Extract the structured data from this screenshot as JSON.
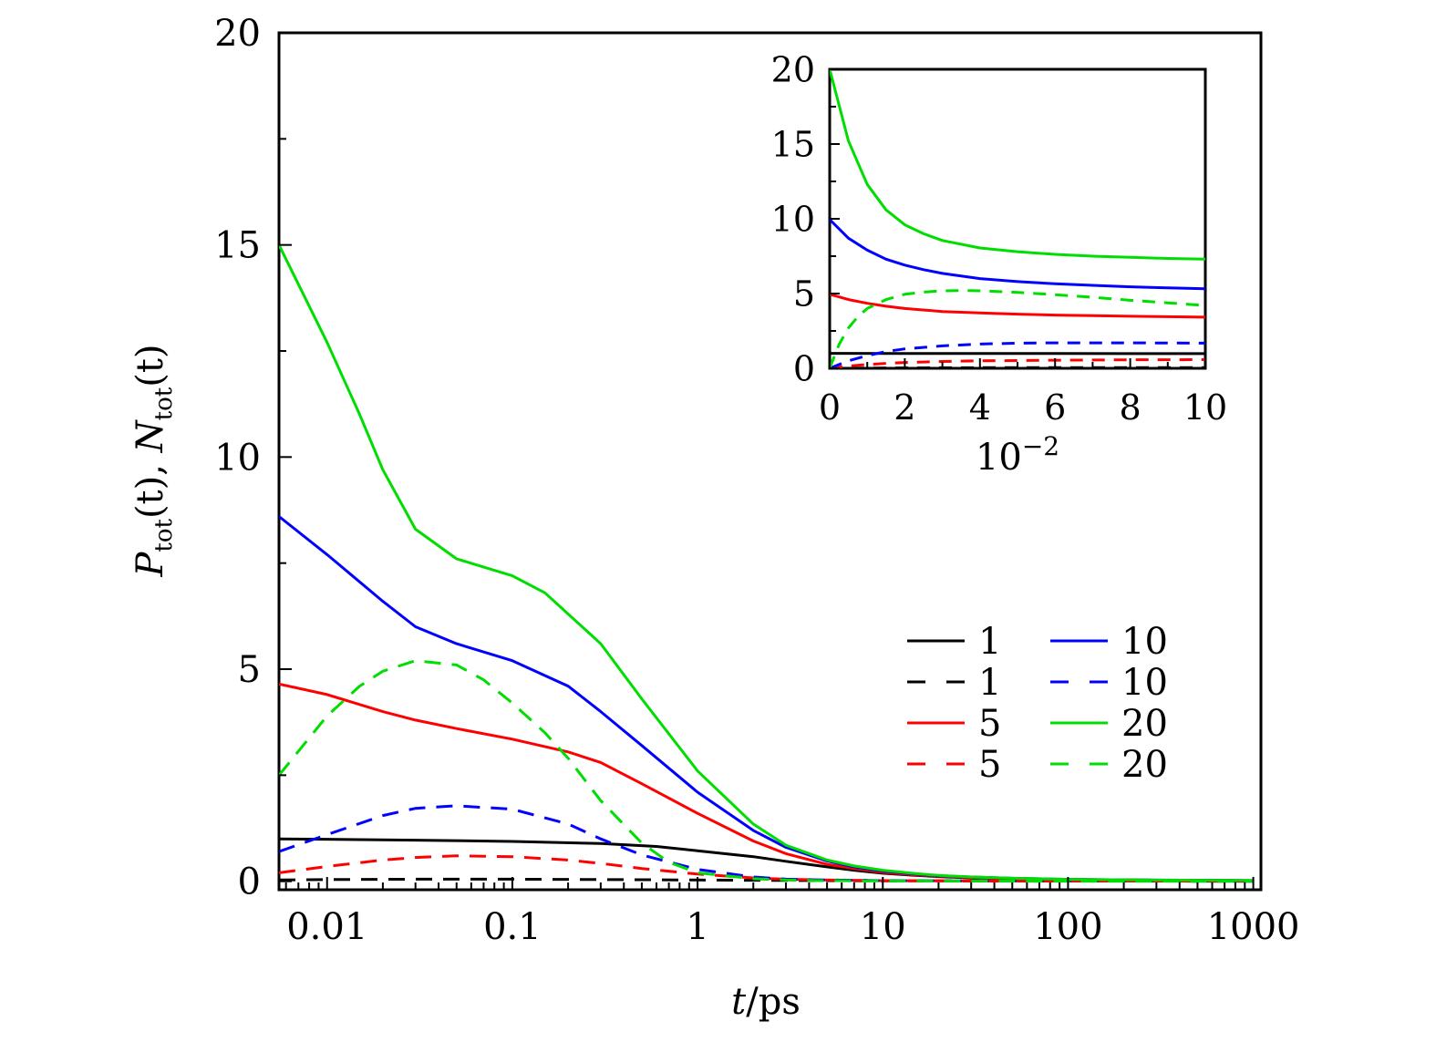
{
  "chart_data": [
    {
      "type": "line",
      "xscale": "log",
      "xlabel_var": "t",
      "xlabel_unit": "/ps",
      "ylabel_p": "P",
      "ylabel_n": "N",
      "ylabel_sub": "tot",
      "ylabel_arg": "(t)",
      "xlim": [
        0.0055,
        1100
      ],
      "ylim": [
        -0.2,
        20
      ],
      "xticks": [
        0.01,
        0.1,
        1,
        10,
        100,
        1000
      ],
      "xtick_labels": [
        "0.01",
        "0.1",
        "1",
        "10",
        "100",
        "1000"
      ],
      "yticks": [
        0,
        5,
        10,
        15,
        20
      ],
      "ytick_labels": [
        "0",
        "5",
        "10",
        "15",
        "20"
      ],
      "legend_position": "center-right",
      "series": [
        {
          "name": "1",
          "kind": "P",
          "color": "#000000",
          "dash": "solid",
          "x": [
            0.0055,
            0.01,
            0.03,
            0.1,
            0.3,
            0.6,
            1,
            2,
            3,
            5,
            7,
            10,
            15,
            20,
            30,
            50,
            100,
            300,
            1000
          ],
          "y": [
            1.0,
            0.99,
            0.97,
            0.94,
            0.89,
            0.82,
            0.72,
            0.58,
            0.47,
            0.34,
            0.26,
            0.19,
            0.14,
            0.11,
            0.08,
            0.06,
            0.04,
            0.025,
            0.015
          ]
        },
        {
          "name": "1",
          "kind": "N",
          "color": "#000000",
          "dash": "dashed",
          "x": [
            0.0055,
            0.01,
            0.03,
            0.1,
            0.3,
            1,
            3,
            10,
            100,
            1000
          ],
          "y": [
            0.03,
            0.04,
            0.05,
            0.05,
            0.04,
            0.03,
            0.02,
            0.01,
            0.005,
            0.002
          ]
        },
        {
          "name": "5",
          "kind": "P",
          "color": "#ff0000",
          "dash": "solid",
          "x": [
            0.0055,
            0.01,
            0.02,
            0.03,
            0.05,
            0.1,
            0.2,
            0.3,
            0.5,
            1,
            2,
            3,
            5,
            7,
            10,
            15,
            20,
            30,
            50,
            100,
            300,
            1000
          ],
          "y": [
            4.65,
            4.4,
            4.0,
            3.8,
            3.6,
            3.35,
            3.05,
            2.8,
            2.3,
            1.6,
            0.95,
            0.65,
            0.4,
            0.3,
            0.21,
            0.15,
            0.12,
            0.09,
            0.06,
            0.04,
            0.025,
            0.015
          ]
        },
        {
          "name": "5",
          "kind": "N",
          "color": "#ff0000",
          "dash": "dashed",
          "x": [
            0.0055,
            0.01,
            0.02,
            0.03,
            0.05,
            0.1,
            0.2,
            0.3,
            0.5,
            1,
            2,
            3,
            5,
            10,
            30,
            100,
            1000
          ],
          "y": [
            0.2,
            0.35,
            0.5,
            0.56,
            0.6,
            0.58,
            0.5,
            0.42,
            0.3,
            0.17,
            0.08,
            0.05,
            0.03,
            0.015,
            0.008,
            0.004,
            0.002
          ]
        },
        {
          "name": "10",
          "kind": "P",
          "color": "#0000ff",
          "dash": "solid",
          "x": [
            0.0055,
            0.01,
            0.02,
            0.03,
            0.05,
            0.1,
            0.2,
            0.3,
            0.5,
            1,
            2,
            3,
            5,
            7,
            10,
            15,
            20,
            30,
            50,
            100,
            300,
            1000
          ],
          "y": [
            8.6,
            7.7,
            6.6,
            6.0,
            5.6,
            5.2,
            4.6,
            4.0,
            3.2,
            2.1,
            1.2,
            0.8,
            0.48,
            0.34,
            0.24,
            0.17,
            0.13,
            0.1,
            0.07,
            0.045,
            0.028,
            0.016
          ]
        },
        {
          "name": "10",
          "kind": "N",
          "color": "#0000ff",
          "dash": "dashed",
          "x": [
            0.0055,
            0.01,
            0.02,
            0.03,
            0.05,
            0.1,
            0.2,
            0.3,
            0.5,
            1,
            2,
            3,
            5,
            10,
            30,
            100,
            1000
          ],
          "y": [
            0.7,
            1.1,
            1.55,
            1.72,
            1.78,
            1.7,
            1.35,
            1.0,
            0.62,
            0.28,
            0.1,
            0.05,
            0.03,
            0.015,
            0.008,
            0.004,
            0.002
          ]
        },
        {
          "name": "20",
          "kind": "P",
          "color": "#00dd00",
          "dash": "solid",
          "x": [
            0.0055,
            0.01,
            0.015,
            0.02,
            0.03,
            0.05,
            0.1,
            0.15,
            0.2,
            0.3,
            0.5,
            1,
            2,
            3,
            5,
            7,
            10,
            15,
            20,
            30,
            50,
            100,
            300,
            1000
          ],
          "y": [
            15.0,
            12.7,
            11.0,
            9.7,
            8.3,
            7.6,
            7.2,
            6.8,
            6.3,
            5.6,
            4.3,
            2.6,
            1.35,
            0.85,
            0.5,
            0.36,
            0.26,
            0.18,
            0.14,
            0.1,
            0.07,
            0.045,
            0.028,
            0.016
          ]
        },
        {
          "name": "20",
          "kind": "N",
          "color": "#00dd00",
          "dash": "dashed",
          "x": [
            0.0055,
            0.01,
            0.015,
            0.02,
            0.03,
            0.05,
            0.07,
            0.1,
            0.15,
            0.2,
            0.3,
            0.5,
            0.7,
            1,
            2,
            3,
            5,
            10,
            30,
            100,
            1000
          ],
          "y": [
            2.5,
            3.9,
            4.6,
            4.95,
            5.2,
            5.1,
            4.75,
            4.2,
            3.5,
            2.9,
            1.9,
            0.9,
            0.45,
            0.2,
            0.06,
            0.03,
            0.015,
            0.008,
            0.004,
            0.002,
            0.001
          ]
        }
      ]
    },
    {
      "type": "line",
      "xlabel_base": "10",
      "xlabel_exp": "−2",
      "xlim": [
        0,
        10
      ],
      "ylim": [
        0,
        20
      ],
      "xticks": [
        0,
        2,
        4,
        6,
        8,
        10
      ],
      "xtick_labels": [
        "0",
        "2",
        "4",
        "6",
        "8",
        "10"
      ],
      "yticks": [
        0,
        5,
        10,
        15,
        20
      ],
      "ytick_labels": [
        "0",
        "5",
        "10",
        "15",
        "20"
      ],
      "series": [
        {
          "name": "1",
          "kind": "P",
          "color": "#000000",
          "dash": "solid",
          "x": [
            0,
            2,
            4,
            6,
            8,
            10
          ],
          "y": [
            1.0,
            0.99,
            0.99,
            0.99,
            0.98,
            0.98
          ]
        },
        {
          "name": "1",
          "kind": "N",
          "color": "#000000",
          "dash": "dashed",
          "x": [
            0,
            2,
            4,
            6,
            8,
            10
          ],
          "y": [
            0.0,
            0.03,
            0.04,
            0.04,
            0.04,
            0.04
          ]
        },
        {
          "name": "5",
          "kind": "P",
          "color": "#ff0000",
          "dash": "solid",
          "x": [
            0,
            0.5,
            1,
            1.5,
            2,
            3,
            4,
            5,
            6,
            7,
            8,
            9,
            10
          ],
          "y": [
            4.95,
            4.6,
            4.35,
            4.15,
            4.0,
            3.8,
            3.7,
            3.62,
            3.56,
            3.52,
            3.48,
            3.45,
            3.42
          ]
        },
        {
          "name": "5",
          "kind": "N",
          "color": "#ff0000",
          "dash": "dashed",
          "x": [
            0,
            0.5,
            1,
            1.5,
            2,
            3,
            4,
            6,
            8,
            10
          ],
          "y": [
            0.0,
            0.15,
            0.25,
            0.33,
            0.39,
            0.46,
            0.5,
            0.54,
            0.57,
            0.58
          ]
        },
        {
          "name": "10",
          "kind": "P",
          "color": "#0000ff",
          "dash": "solid",
          "x": [
            0,
            0.5,
            1,
            1.5,
            2,
            2.5,
            3,
            4,
            5,
            6,
            7,
            8,
            9,
            10
          ],
          "y": [
            9.95,
            8.7,
            7.9,
            7.3,
            6.9,
            6.6,
            6.35,
            6.0,
            5.8,
            5.65,
            5.55,
            5.45,
            5.38,
            5.32
          ]
        },
        {
          "name": "10",
          "kind": "N",
          "color": "#0000ff",
          "dash": "dashed",
          "x": [
            0,
            0.5,
            1,
            1.5,
            2,
            3,
            4,
            5,
            6,
            8,
            10
          ],
          "y": [
            0.0,
            0.5,
            0.85,
            1.12,
            1.3,
            1.5,
            1.62,
            1.68,
            1.7,
            1.7,
            1.68
          ]
        },
        {
          "name": "20",
          "kind": "P",
          "color": "#00dd00",
          "dash": "solid",
          "x": [
            0,
            0.5,
            1,
            1.5,
            2,
            2.5,
            3,
            4,
            5,
            6,
            7,
            8,
            9,
            10
          ],
          "y": [
            20.0,
            15.2,
            12.3,
            10.6,
            9.6,
            9.0,
            8.55,
            8.05,
            7.8,
            7.62,
            7.5,
            7.42,
            7.35,
            7.3
          ]
        },
        {
          "name": "20",
          "kind": "N",
          "color": "#00dd00",
          "dash": "dashed",
          "x": [
            0,
            0.25,
            0.5,
            0.75,
            1,
            1.5,
            2,
            2.5,
            3,
            3.5,
            4,
            5,
            6,
            7,
            8,
            9,
            10
          ],
          "y": [
            0.0,
            1.6,
            2.7,
            3.45,
            4.0,
            4.6,
            4.95,
            5.1,
            5.18,
            5.2,
            5.18,
            5.08,
            4.92,
            4.75,
            4.55,
            4.38,
            4.2
          ]
        }
      ]
    }
  ],
  "legend": {
    "entries": [
      {
        "label": "1",
        "color": "#000000",
        "dash": "solid"
      },
      {
        "label": "1",
        "color": "#000000",
        "dash": "dashed"
      },
      {
        "label": "5",
        "color": "#ff0000",
        "dash": "solid"
      },
      {
        "label": "5",
        "color": "#ff0000",
        "dash": "dashed"
      },
      {
        "label": "10",
        "color": "#0000ff",
        "dash": "solid"
      },
      {
        "label": "10",
        "color": "#0000ff",
        "dash": "dashed"
      },
      {
        "label": "20",
        "color": "#00dd00",
        "dash": "solid"
      },
      {
        "label": "20",
        "color": "#00dd00",
        "dash": "dashed"
      }
    ]
  }
}
